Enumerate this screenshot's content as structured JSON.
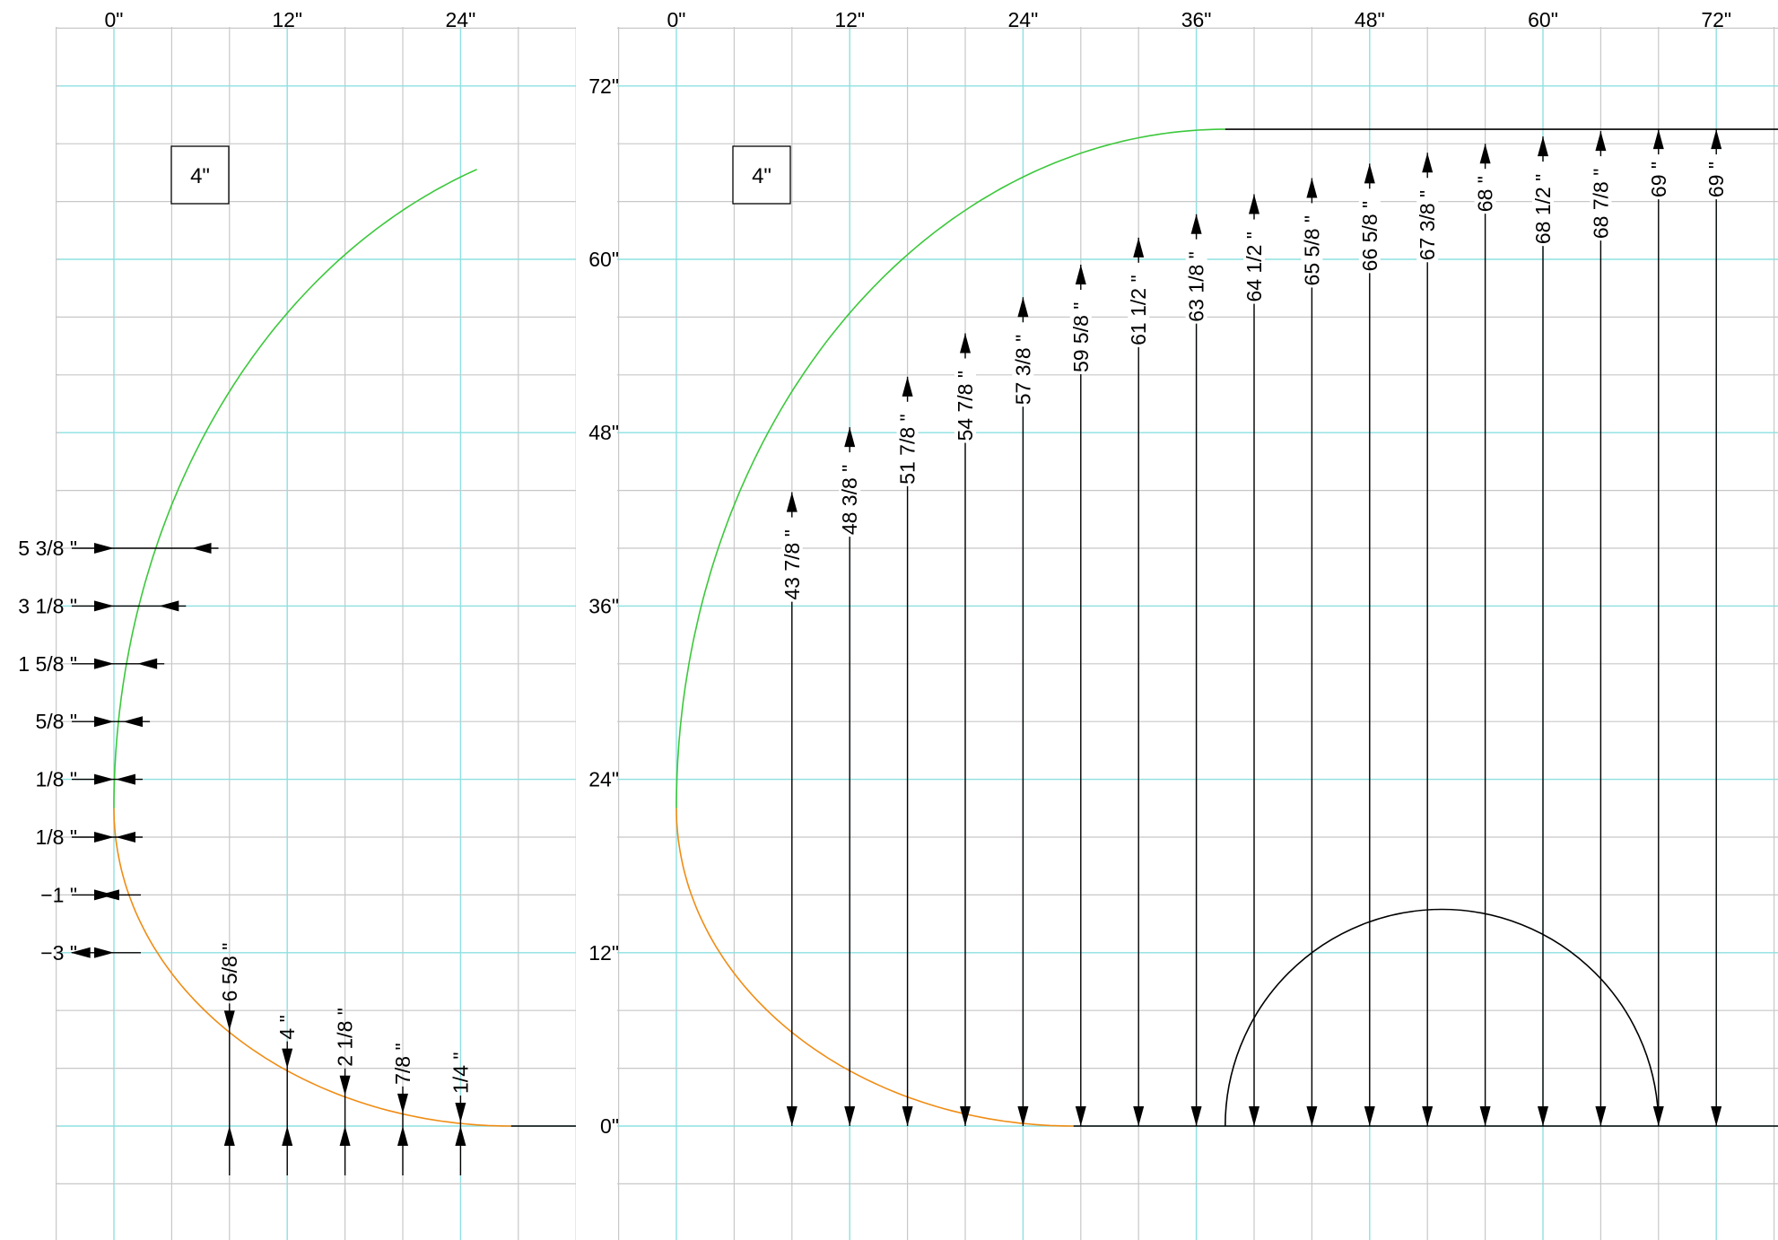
{
  "scale_box_label": "4\"",
  "left_panel": {
    "x_ticks": [
      "0\"",
      "12\"",
      "24\""
    ],
    "horizontal_dims": [
      {
        "label": "5 3/8 \"",
        "y": 40
      },
      {
        "label": "3 1/8 \"",
        "y": 36
      },
      {
        "label": "1 5/8 \"",
        "y": 32
      },
      {
        "label": "5/8 \"",
        "y": 28
      },
      {
        "label": "1/8 \"",
        "y": 24
      },
      {
        "label": "1/8 \"",
        "y": 20
      },
      {
        "label": "−1 \"",
        "y": 16
      },
      {
        "label": "−3 \"",
        "y": 12
      }
    ],
    "vertical_dims": [
      {
        "label": "6 5/8 \"",
        "x": 8
      },
      {
        "label": "4 \"",
        "x": 12
      },
      {
        "label": "2 1/8 \"",
        "x": 16
      },
      {
        "label": "7/8 \"",
        "x": 20
      },
      {
        "label": "1/4 \"",
        "x": 24
      }
    ]
  },
  "right_panel": {
    "x_ticks": [
      "0\"",
      "12\"",
      "24\"",
      "36\"",
      "48\"",
      "60\"",
      "72\""
    ],
    "y_ticks": [
      "72\"",
      "60\"",
      "48\"",
      "36\"",
      "24\"",
      "12\"",
      "0\""
    ],
    "vertical_dims": [
      {
        "label": "43 7/8 \"",
        "x": 8
      },
      {
        "label": "48 3/8 \"",
        "x": 12
      },
      {
        "label": "51 7/8 \"",
        "x": 16
      },
      {
        "label": "54 7/8 \"",
        "x": 20
      },
      {
        "label": "57 3/8 \"",
        "x": 24
      },
      {
        "label": "59 5/8 \"",
        "x": 28
      },
      {
        "label": "61 1/2 \"",
        "x": 32
      },
      {
        "label": "63 1/8 \"",
        "x": 36
      },
      {
        "label": "64 1/2 \"",
        "x": 40
      },
      {
        "label": "65 5/8 \"",
        "x": 44
      },
      {
        "label": "66 5/8 \"",
        "x": 48
      },
      {
        "label": "67 3/8 \"",
        "x": 52
      },
      {
        "label": "68 \"",
        "x": 56
      },
      {
        "label": "68 1/2 \"",
        "x": 60
      },
      {
        "label": "68 7/8 \"",
        "x": 64
      },
      {
        "label": "69 \"",
        "x": 68
      },
      {
        "label": "69 \"",
        "x": 72
      }
    ]
  }
}
